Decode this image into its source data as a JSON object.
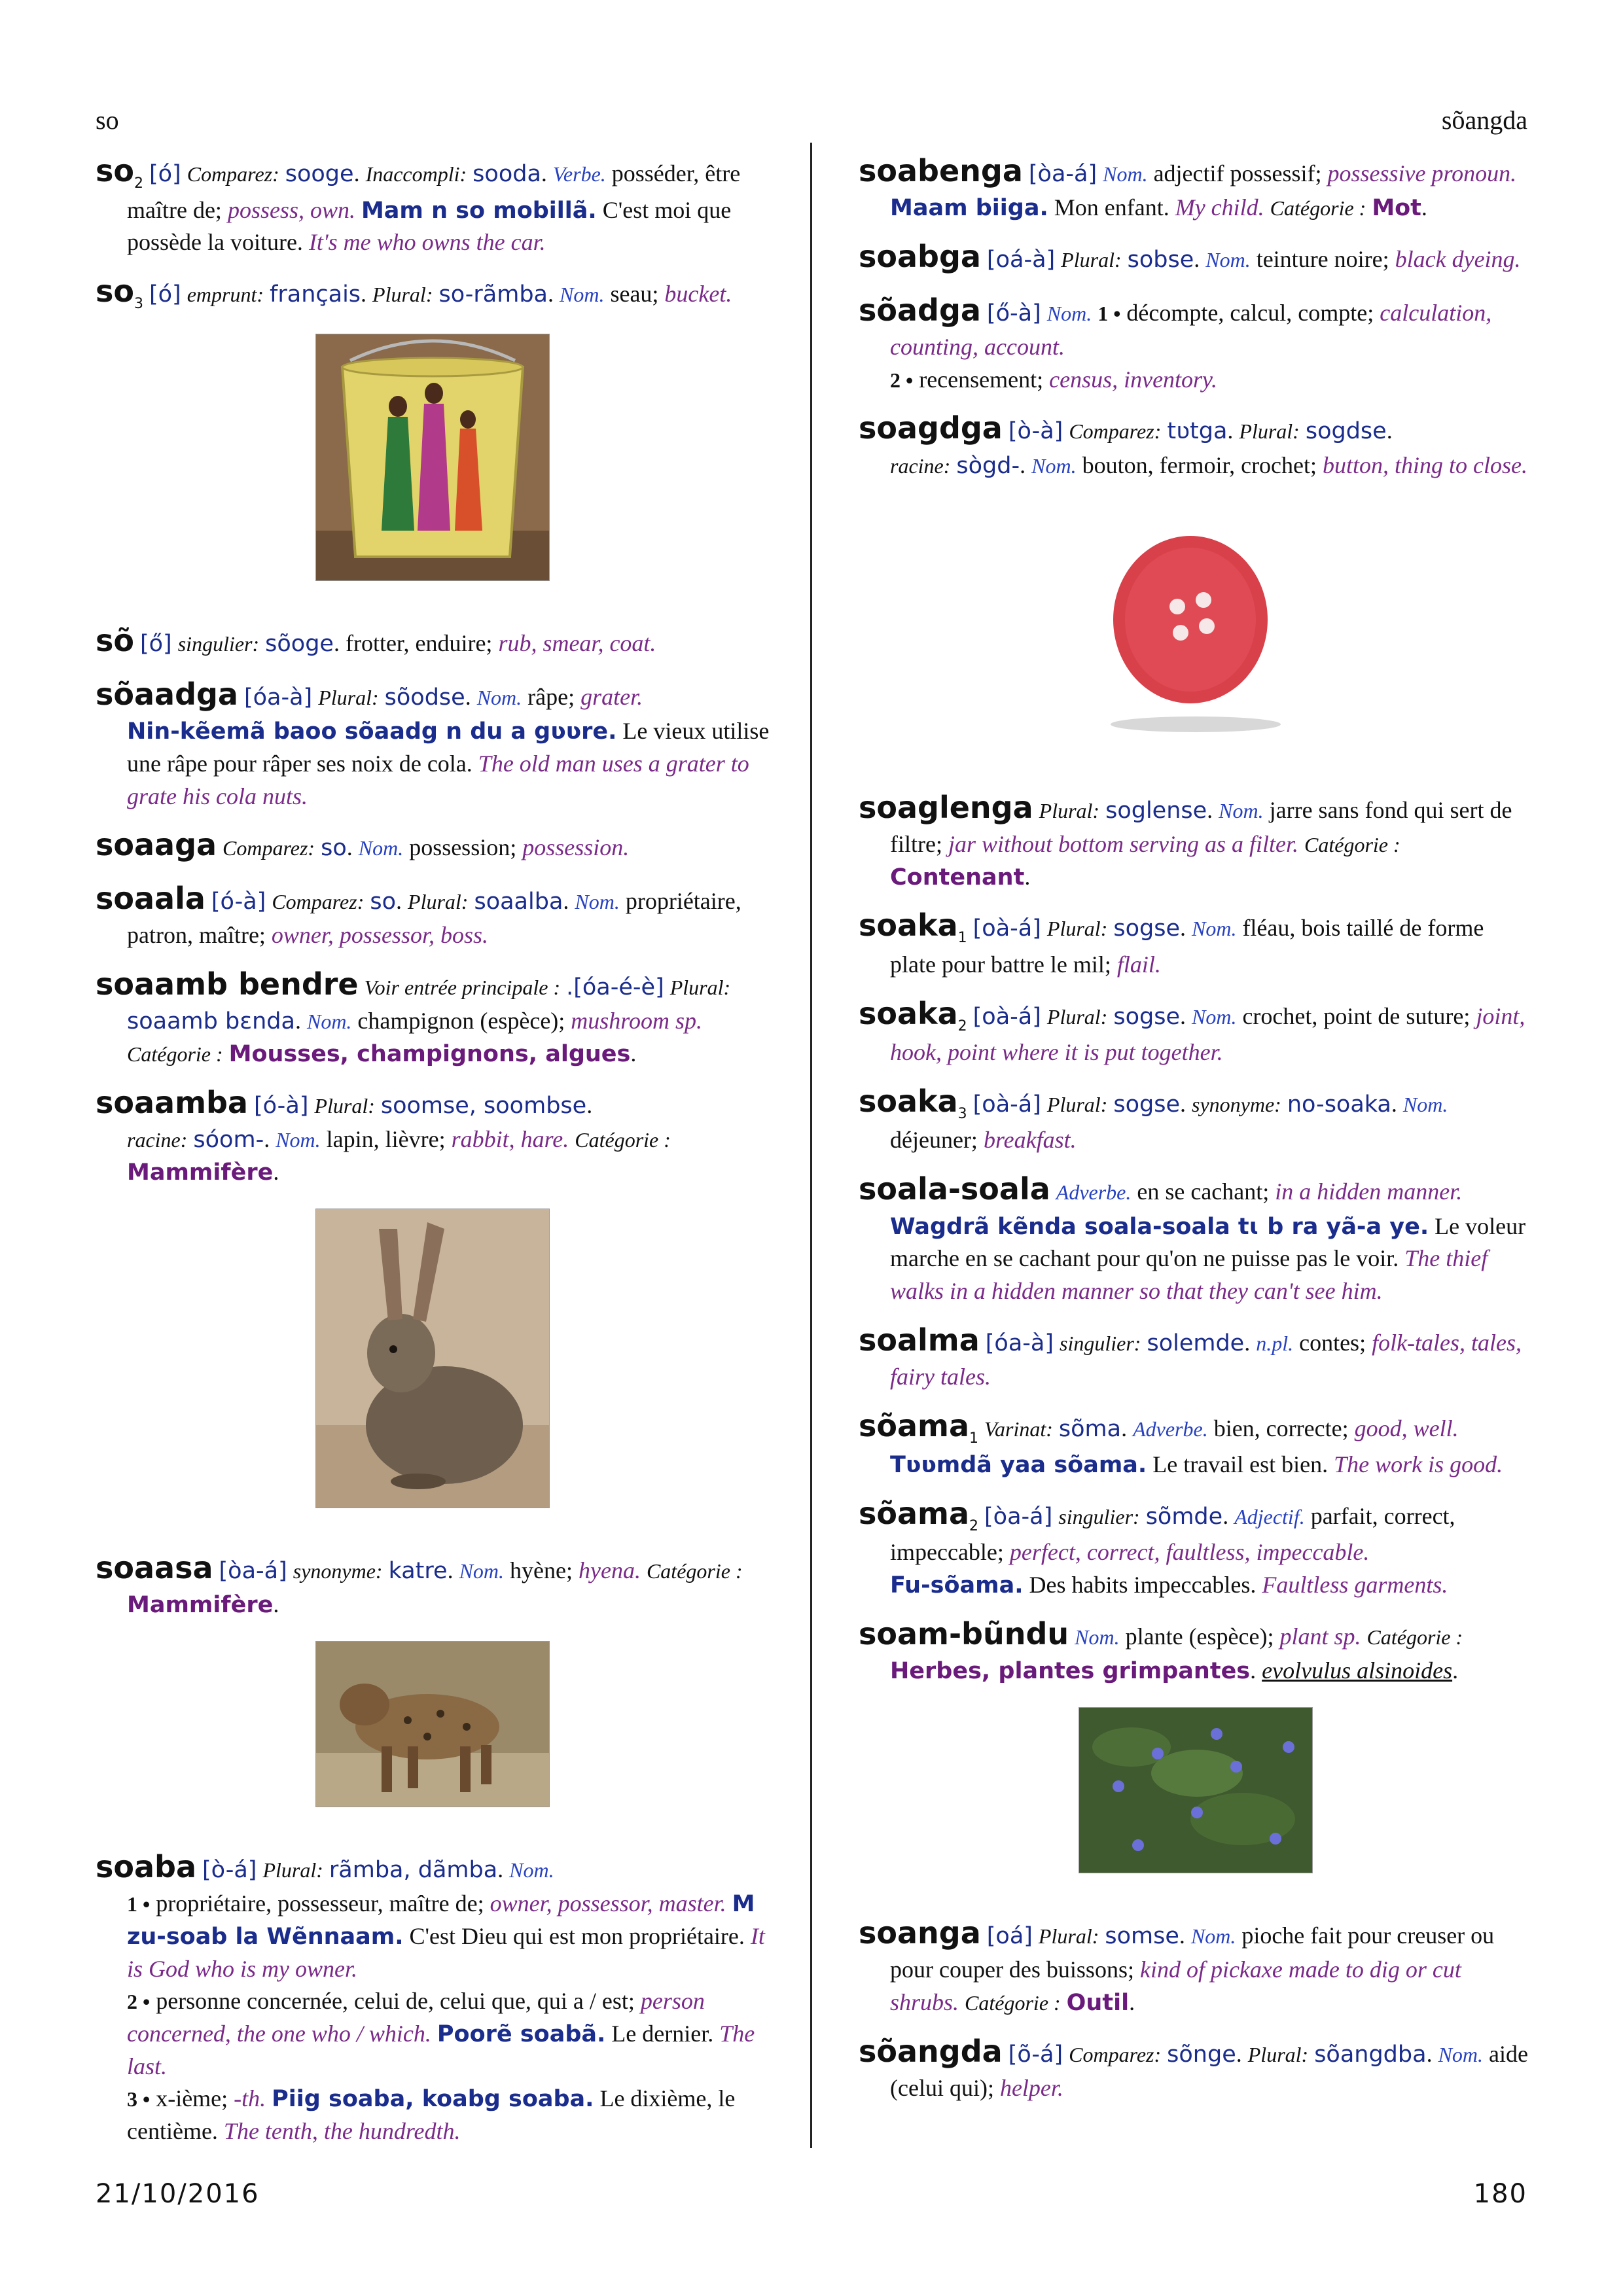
{
  "header": {
    "left": "so",
    "right": "sõangda"
  },
  "footer": {
    "date": "21/10/2016",
    "page": "180"
  },
  "entries": {
    "so2": {
      "hw": "so",
      "sub": "2",
      "ph": "[ó]",
      "lbl1": "Comparez:",
      "ref1": "sooge",
      "lbl2": "Inaccompli:",
      "ref2": "sooda",
      "pos": "Verbe.",
      "fr": "posséder, être maître de;",
      "en": "possess, own.",
      "ex": "Mam n so mobillã.",
      "extr": "C'est moi que possède la voiture.",
      "exen": "It's me who owns the car."
    },
    "so3": {
      "hw": "so",
      "sub": "3",
      "ph": "[ó]",
      "lbl1": "emprunt:",
      "ref1": "français",
      "lbl2": "Plural:",
      "ref2": "so-rãmba",
      "pos": "Nom.",
      "fr": "seau;",
      "en": "bucket."
    },
    "soo": {
      "hw": "sõ",
      "ph": "[ő]",
      "lbl1": "singulier:",
      "ref1": "sõoge",
      "fr": "frotter, enduire;",
      "en": "rub, smear, coat."
    },
    "soaadga": {
      "hw": "sõaadga",
      "ph": "[óa-à]",
      "lbl1": "Plural:",
      "ref1": "sõodse",
      "pos": "Nom.",
      "fr": "râpe;",
      "en": "grater.",
      "ex": "Nin-kẽemã baoo sõaadg n du a gʋʋre.",
      "extr": "Le vieux utilise une râpe pour râper ses noix de cola.",
      "exen": "The old man uses a grater to grate his cola nuts."
    },
    "soaaga": {
      "hw": "soaaga",
      "lbl1": "Comparez:",
      "ref1": "so",
      "pos": "Nom.",
      "fr": "possession;",
      "en": "possession."
    },
    "soaala": {
      "hw": "soaala",
      "ph": "[ó-à]",
      "lbl1": "Comparez:",
      "ref1": "so",
      "lbl2": "Plural:",
      "ref2": "soaalba",
      "pos": "Nom.",
      "fr": "propriétaire, patron, maître;",
      "en": "owner, possessor, boss."
    },
    "soaamb": {
      "hw": "soaamb bendre",
      "lbl1": "Voir entrée principale :",
      "ph": ".[óa-é-è]",
      "lbl2": "Plural:",
      "ref2": "soaamb bɛnda",
      "pos": "Nom.",
      "fr": "champignon (espèce);",
      "en": "mushroom sp.",
      "catlbl": "Catégorie :",
      "cat": "Mousses, champignons, algues"
    },
    "soaamba": {
      "hw": "soaamba",
      "ph": "[ó-à]",
      "lbl1": "Plural:",
      "ref1": "soomse, soombse",
      "lbl2": "racine:",
      "ref2": "sóom-",
      "pos": "Nom.",
      "fr": "lapin, lièvre;",
      "en": "rabbit, hare.",
      "catlbl": "Catégorie :",
      "cat": "Mammifère"
    },
    "soaasa": {
      "hw": "soaasa",
      "ph": "[òa-á]",
      "lbl1": "synonyme:",
      "ref1": "katre",
      "pos": "Nom.",
      "fr": "hyène;",
      "en": "hyena.",
      "catlbl": "Catégorie :",
      "cat": "Mammifère"
    },
    "soaba": {
      "hw": "soaba",
      "ph": "[ò-á]",
      "lbl1": "Plural:",
      "ref1": "rãmba, dãmba",
      "pos": "Nom.",
      "s1": "1 •",
      "fr1": "propriétaire, possesseur, maître de;",
      "en1": "owner, possessor, master.",
      "ex1": "M zu-soab la Wẽnnaam.",
      "ex1tr": "C'est Dieu qui est mon propriétaire.",
      "ex1en": "It is God who is my owner.",
      "s2": "2 •",
      "fr2": "personne concernée, celui de, celui que, qui a / est;",
      "en2": "person concerned, the one who / which.",
      "ex2": "Poorẽ soabã.",
      "ex2tr": "Le dernier.",
      "ex2en": "The last.",
      "s3": "3 •",
      "fr3": "x-ième;",
      "en3": "-th.",
      "ex3": "Piig soaba, koabg soaba.",
      "ex3tr": "Le dixième, le centième.",
      "ex3en": "The tenth, the hundredth."
    },
    "soabenga": {
      "hw": "soabenga",
      "ph": "[òa-á]",
      "pos": "Nom.",
      "fr": "adjectif possessif;",
      "en": "possessive pronoun.",
      "ex": "Maam biiga.",
      "extr": "Mon enfant.",
      "exen": "My child.",
      "catlbl": "Catégorie :",
      "cat": "Mot"
    },
    "soabga": {
      "hw": "soabga",
      "ph": "[oá-à]",
      "lbl1": "Plural:",
      "ref1": "sobse",
      "pos": "Nom.",
      "fr": "teinture noire;",
      "en": "black dyeing."
    },
    "soadga": {
      "hw": "sõadga",
      "ph": "[ő-à]",
      "pos": "Nom.",
      "s1": "1 •",
      "fr1": "décompte, calcul, compte;",
      "en1": "calculation, counting, account.",
      "s2": "2 •",
      "fr2": "recensement;",
      "en2": "census, inventory."
    },
    "soagdga": {
      "hw": "soagdga",
      "ph": "[ò-à]",
      "lbl1": "Comparez:",
      "ref1": "tʋtga",
      "lbl2": "Plural:",
      "ref2": "sogdse",
      "lbl3": "racine:",
      "ref3": "sògd-",
      "pos": "Nom.",
      "fr": "bouton, fermoir, crochet;",
      "en": "button, thing to close."
    },
    "soaglenga": {
      "hw": "soaglenga",
      "lbl1": "Plural:",
      "ref1": "soglense",
      "pos": "Nom.",
      "fr": "jarre sans fond qui sert de filtre;",
      "en": "jar without bottom serving as a filter.",
      "catlbl": "Catégorie :",
      "cat": "Contenant"
    },
    "soaka1": {
      "hw": "soaka",
      "sub": "1",
      "ph": "[oà-á]",
      "lbl1": "Plural:",
      "ref1": "sogse",
      "pos": "Nom.",
      "fr": "fléau, bois taillé de forme plate pour battre le mil;",
      "en": "flail."
    },
    "soaka2": {
      "hw": "soaka",
      "sub": "2",
      "ph": "[oà-á]",
      "lbl1": "Plural:",
      "ref1": "sogse",
      "pos": "Nom.",
      "fr": "crochet, point de suture;",
      "en": "joint, hook, point where it is put together."
    },
    "soaka3": {
      "hw": "soaka",
      "sub": "3",
      "ph": "[oà-á]",
      "lbl1": "Plural:",
      "ref1": "sogse",
      "lbl2": "synonyme:",
      "ref2": "no-soaka",
      "pos": "Nom.",
      "fr": "déjeuner;",
      "en": "breakfast."
    },
    "soalasoala": {
      "hw": "soala-soala",
      "pos": "Adverbe.",
      "fr": "en se cachant;",
      "en": "in a hidden manner.",
      "ex": "Wagdrã kẽnda soala-soala tɩ b ra yã-a ye.",
      "extr": "Le voleur marche en se cachant pour qu'on ne puisse pas le voir.",
      "exen": "The thief walks in a hidden manner so that they can't see him."
    },
    "soalma": {
      "hw": "soalma",
      "ph": "[óa-à]",
      "lbl1": "singulier:",
      "ref1": "solemde",
      "pos": "n.pl.",
      "fr": "contes;",
      "en": "folk-tales, tales, fairy tales."
    },
    "soama1": {
      "hw": "sõama",
      "sub": "1",
      "lbl1": "Varinat:",
      "ref1": "sõma",
      "pos": "Adverbe.",
      "fr": "bien, correcte;",
      "en": "good, well.",
      "ex": "Tʋʋmdã yaa sõama.",
      "extr": "Le travail est bien.",
      "exen": "The work is good."
    },
    "soama2": {
      "hw": "sõama",
      "sub": "2",
      "ph": "[òa-á]",
      "lbl1": "singulier:",
      "ref1": "sõmde",
      "pos": "Adjectif.",
      "fr": "parfait, correct, impeccable;",
      "en": "perfect, correct, faultless, impeccable.",
      "ex": "Fu-sõama.",
      "extr": "Des habits impeccables.",
      "exen": "Faultless garments."
    },
    "soambundu": {
      "hw": "soam-bũndu",
      "pos": "Nom.",
      "fr": "plante (espèce);",
      "en": "plant sp.",
      "catlbl": "Catégorie :",
      "cat": "Herbes, plantes grimpantes",
      "sci": "evolvulus alsinoides"
    },
    "soanga": {
      "hw": "soanga",
      "ph": "[oá]",
      "lbl1": "Plural:",
      "ref1": "somse",
      "pos": "Nom.",
      "fr": "pioche fait pour creuser ou pour couper des buissons;",
      "en": "kind of pickaxe made to dig or cut shrubs.",
      "catlbl": "Catégorie :",
      "cat": "Outil"
    },
    "soangda": {
      "hw": "sõangda",
      "ph": "[õ-á]",
      "lbl1": "Comparez:",
      "ref1": "sõnge",
      "lbl2": "Plural:",
      "ref2": "sõangdba",
      "pos": "Nom.",
      "fr": "aide (celui qui);",
      "en": "helper."
    }
  },
  "colors": {
    "headword": "#111111",
    "phonetic": "#1a2c8c",
    "english": "#7a2a88",
    "pos": "#2741c0",
    "category": "#6a1a7a"
  }
}
